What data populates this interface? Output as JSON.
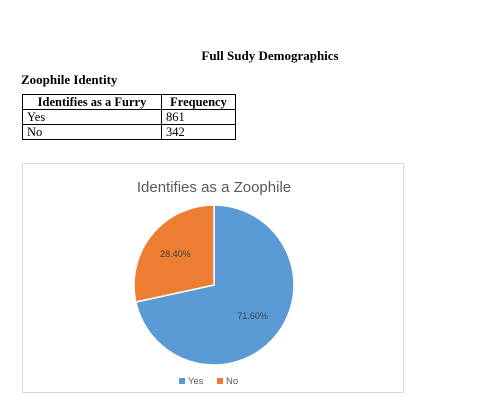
{
  "document": {
    "title": "Full Sudy Demographics",
    "section_heading": "Zoophile Identity"
  },
  "table": {
    "headers": [
      "Identifies as a Furry",
      "Frequency"
    ],
    "rows": [
      [
        "Yes",
        "861"
      ],
      [
        "No",
        "342"
      ]
    ]
  },
  "chart_data": {
    "type": "pie",
    "title": "Identifies as a Zoophile",
    "categories": [
      "Yes",
      "No"
    ],
    "values": [
      71.6,
      28.4
    ],
    "data_labels": [
      "71.60%",
      "28.40%"
    ],
    "colors": [
      "#5b9bd5",
      "#ed7d31"
    ],
    "legend_position": "bottom",
    "legend_entries": [
      "Yes",
      "No"
    ]
  }
}
